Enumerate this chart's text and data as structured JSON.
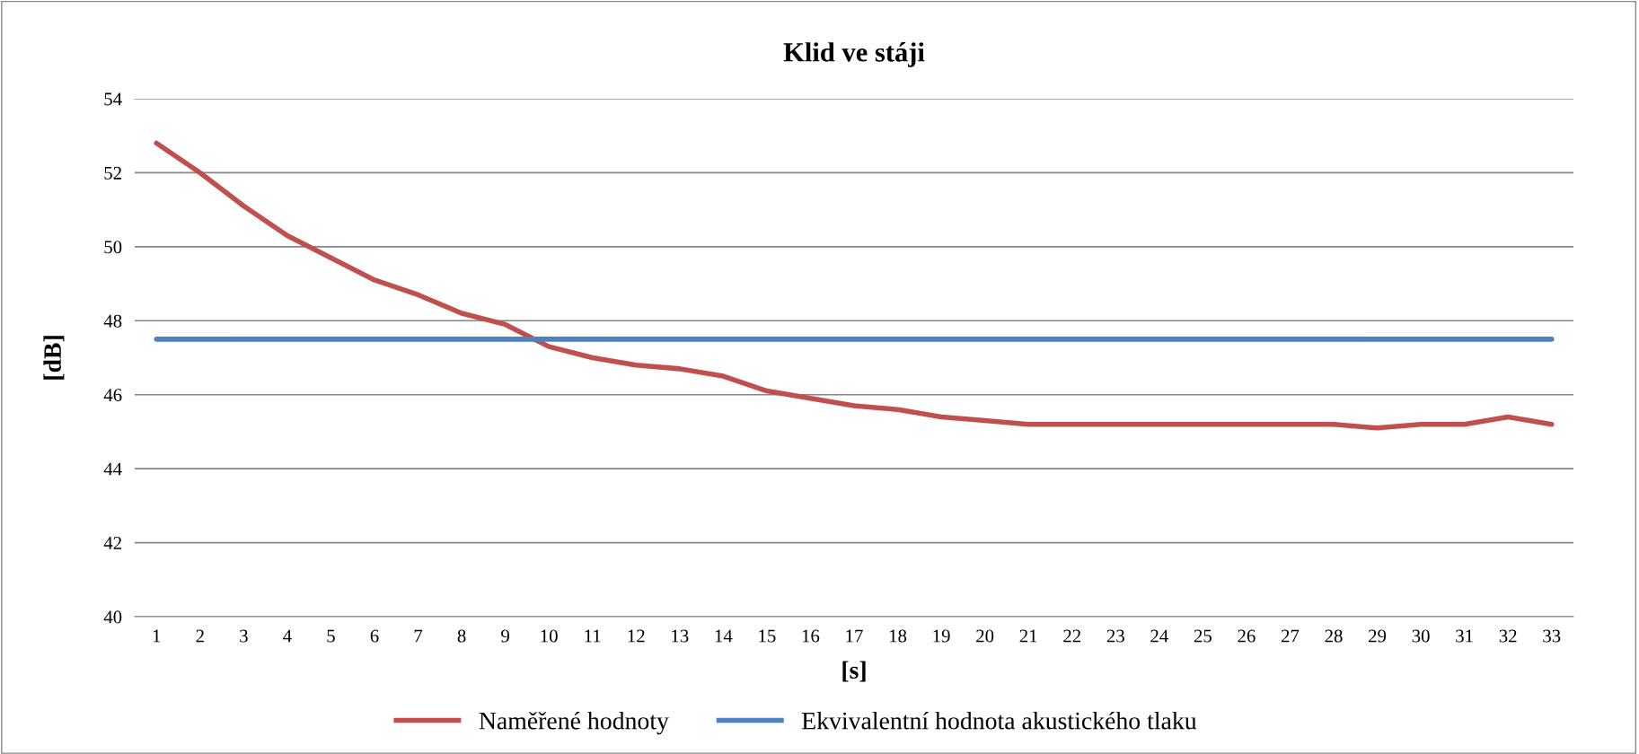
{
  "chart_data": {
    "type": "line",
    "title": "Klid ve stáji",
    "xlabel": "[s]",
    "ylabel": "[dB]",
    "categories": [
      "1",
      "2",
      "3",
      "4",
      "5",
      "6",
      "7",
      "8",
      "9",
      "10",
      "11",
      "12",
      "13",
      "14",
      "15",
      "16",
      "17",
      "18",
      "19",
      "20",
      "21",
      "22",
      "23",
      "24",
      "25",
      "26",
      "27",
      "28",
      "29",
      "30",
      "31",
      "32",
      "33"
    ],
    "series": [
      {
        "name": "Naměřené hodnoty",
        "color": "#c0504d",
        "values": [
          52.8,
          52.0,
          51.1,
          50.3,
          49.7,
          49.1,
          48.7,
          48.2,
          47.9,
          47.3,
          47.0,
          46.8,
          46.7,
          46.5,
          46.1,
          45.9,
          45.7,
          45.6,
          45.4,
          45.3,
          45.2,
          45.2,
          45.2,
          45.2,
          45.2,
          45.2,
          45.2,
          45.2,
          45.1,
          45.2,
          45.2,
          45.4,
          45.2
        ]
      },
      {
        "name": "Ekvivalentní hodnota akustického tlaku",
        "color": "#4f81bd",
        "values": [
          47.5,
          47.5,
          47.5,
          47.5,
          47.5,
          47.5,
          47.5,
          47.5,
          47.5,
          47.5,
          47.5,
          47.5,
          47.5,
          47.5,
          47.5,
          47.5,
          47.5,
          47.5,
          47.5,
          47.5,
          47.5,
          47.5,
          47.5,
          47.5,
          47.5,
          47.5,
          47.5,
          47.5,
          47.5,
          47.5,
          47.5,
          47.5,
          47.5
        ]
      }
    ],
    "ylim": [
      40,
      54
    ],
    "yticks": [
      40,
      42,
      44,
      46,
      48,
      50,
      52,
      54
    ],
    "grid": "y",
    "legend": "bottom",
    "marker": "none",
    "line_style": "solid"
  }
}
